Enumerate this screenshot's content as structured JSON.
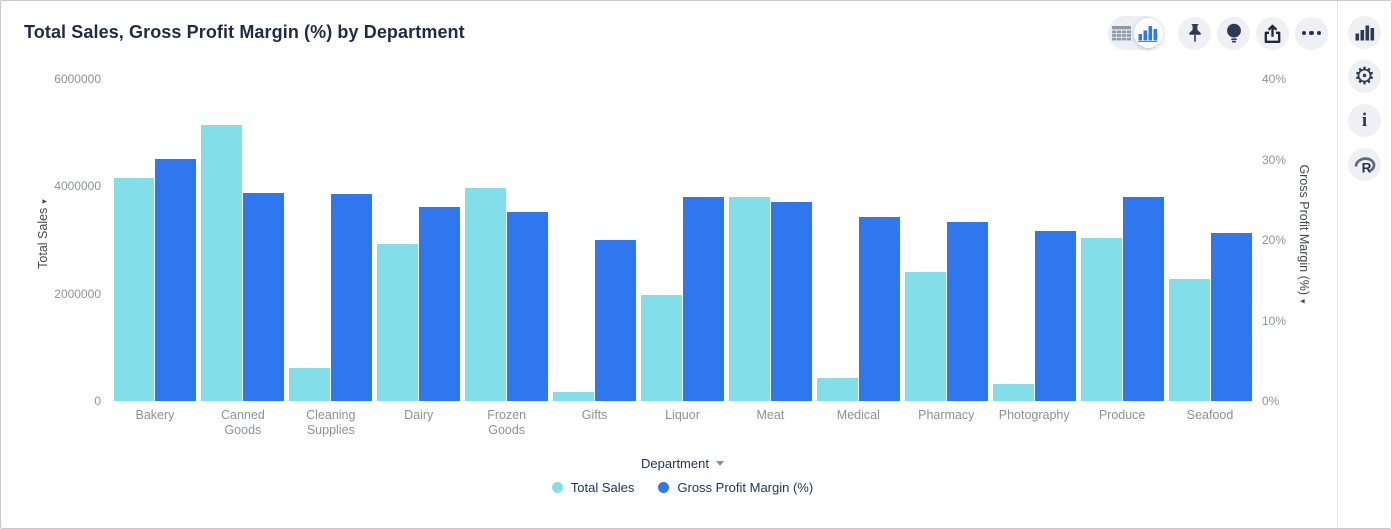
{
  "header": {
    "title": "Total Sales, Gross Profit Margin (%) by Department"
  },
  "toolbar": {
    "view_toggle": {
      "options": [
        "table-view",
        "chart-view"
      ],
      "selected": "chart-view"
    },
    "buttons": [
      "pin",
      "insights-bulb",
      "export-share",
      "more-options"
    ]
  },
  "rail": {
    "buttons": [
      "chart-type",
      "settings-gear",
      "info",
      "r-analysis"
    ]
  },
  "colors": {
    "total_sales": "#82dee9",
    "gross_profit_margin": "#2f77ee",
    "title_text": "#1f2b46",
    "tick_text": "#8f9399"
  },
  "chart_data": {
    "type": "bar",
    "title": "Total Sales, Gross Profit Margin (%) by Department",
    "xlabel": "Department",
    "categories": [
      "Bakery",
      "Canned Goods",
      "Cleaning Supplies",
      "Dairy",
      "Frozen Goods",
      "Gifts",
      "Liquor",
      "Meat",
      "Medical",
      "Pharmacy",
      "Photography",
      "Produce",
      "Seafood"
    ],
    "series": [
      {
        "name": "Total Sales",
        "axis": "left",
        "color": "#82dee9",
        "values": [
          4150000,
          5140000,
          620000,
          2920000,
          3970000,
          170000,
          1970000,
          3800000,
          430000,
          2410000,
          320000,
          3040000,
          2270000
        ]
      },
      {
        "name": "Gross Profit Margin (%)",
        "axis": "right",
        "color": "#2f77ee",
        "values": [
          30.1,
          25.8,
          25.7,
          24.1,
          23.5,
          20.0,
          25.3,
          24.7,
          22.8,
          22.2,
          21.1,
          25.3,
          20.9
        ]
      }
    ],
    "y_left": {
      "label": "Total Sales",
      "ticks": [
        "6000000",
        "4000000",
        "2000000",
        "0"
      ],
      "lim": [
        0,
        6000000
      ]
    },
    "y_right": {
      "label": "Gross Profit Margin (%)",
      "ticks": [
        "40%",
        "30%",
        "20%",
        "10%",
        "0%"
      ],
      "lim": [
        0,
        40
      ]
    },
    "grid": false,
    "legend_position": "bottom"
  }
}
